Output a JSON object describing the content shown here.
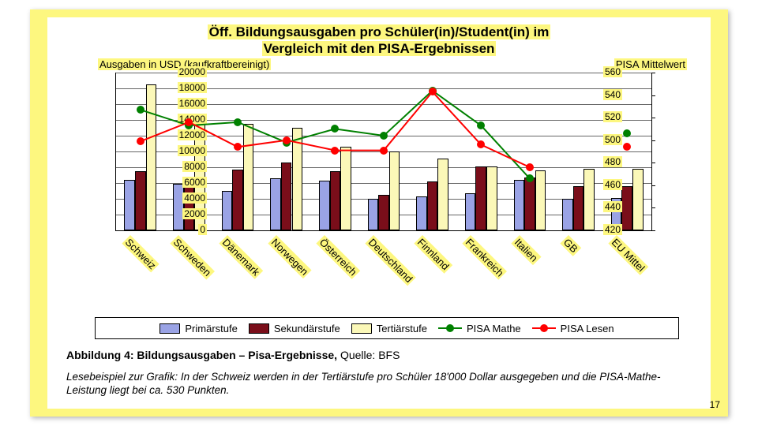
{
  "page": {
    "number": 17,
    "background_color": "#fdf77f",
    "panel_color": "#ffffff"
  },
  "chart": {
    "type": "bar+line",
    "title_line1": "Öff. Bildungsausgaben pro Schüler(in)/Student(in) im",
    "title_line2": "Vergleich mit den PISA-Ergebnissen",
    "title_fontsize": 17,
    "y_left": {
      "label": "Ausgaben in USD (kaufkraftbereinigt)",
      "min": 0,
      "max": 20000,
      "step": 2000,
      "ticks": [
        0,
        2000,
        4000,
        6000,
        8000,
        10000,
        12000,
        14000,
        16000,
        18000,
        20000
      ]
    },
    "y_right": {
      "label": "PISA Mittelwert",
      "min": 420,
      "max": 560,
      "step": 20,
      "ticks": [
        420,
        440,
        460,
        480,
        500,
        520,
        540,
        560
      ]
    },
    "categories": [
      "Schweiz",
      "Schweden",
      "Dänemark",
      "Norwegen",
      "Österreich",
      "Deutschland",
      "Finnland",
      "Frankreich",
      "Italien",
      "GB",
      "EU Mittel"
    ],
    "series_bars": [
      {
        "name": "Primärstufe",
        "color": "#9aa3e5",
        "values": [
          6400,
          5900,
          5000,
          6600,
          6300,
          4000,
          4300,
          4700,
          6400,
          4000,
          4100
        ]
      },
      {
        "name": "Sekundärstufe",
        "color": "#7a0e1a",
        "values": [
          7500,
          6000,
          7700,
          8600,
          7500,
          4500,
          6200,
          8100,
          6700,
          5600,
          5600
        ]
      },
      {
        "name": "Tertiärstufe",
        "color": "#fbf8b8",
        "values": [
          18500,
          13700,
          13500,
          13000,
          10600,
          10000,
          9100,
          8100,
          7600,
          7800,
          7800
        ]
      }
    ],
    "series_lines": [
      {
        "name": "PISA Mathe",
        "color": "#008000",
        "marker_color": "#008000",
        "values": [
          527,
          513,
          516,
          498,
          510,
          504,
          544,
          513,
          466,
          null,
          506
        ]
      },
      {
        "name": "PISA Lesen",
        "color": "#ff0000",
        "marker_color": "#ff0000",
        "values": [
          499,
          516,
          494,
          500,
          491,
          491,
          543,
          496,
          476,
          null,
          494
        ]
      }
    ],
    "bar_width_ratio": 0.22,
    "label_rotation_deg": 45,
    "label_fontsize": 13,
    "highlight_color": "#fdf77f",
    "grid_color": "#000000"
  },
  "legend": {
    "items": [
      "Primärstufe",
      "Sekundärstufe",
      "Tertiärstufe",
      "PISA Mathe",
      "PISA Lesen"
    ]
  },
  "caption": {
    "bold": "Abbildung 4: Bildungsausgaben – Pisa-Ergebnisse,",
    "rest": " Quelle: BFS"
  },
  "example": "Lesebeispiel zur Grafik: In der Schweiz werden in der Tertiärstufe pro Schüler 18'000 Dollar ausgegeben und die PISA-Mathe-Leistung liegt bei ca. 530 Punkten."
}
